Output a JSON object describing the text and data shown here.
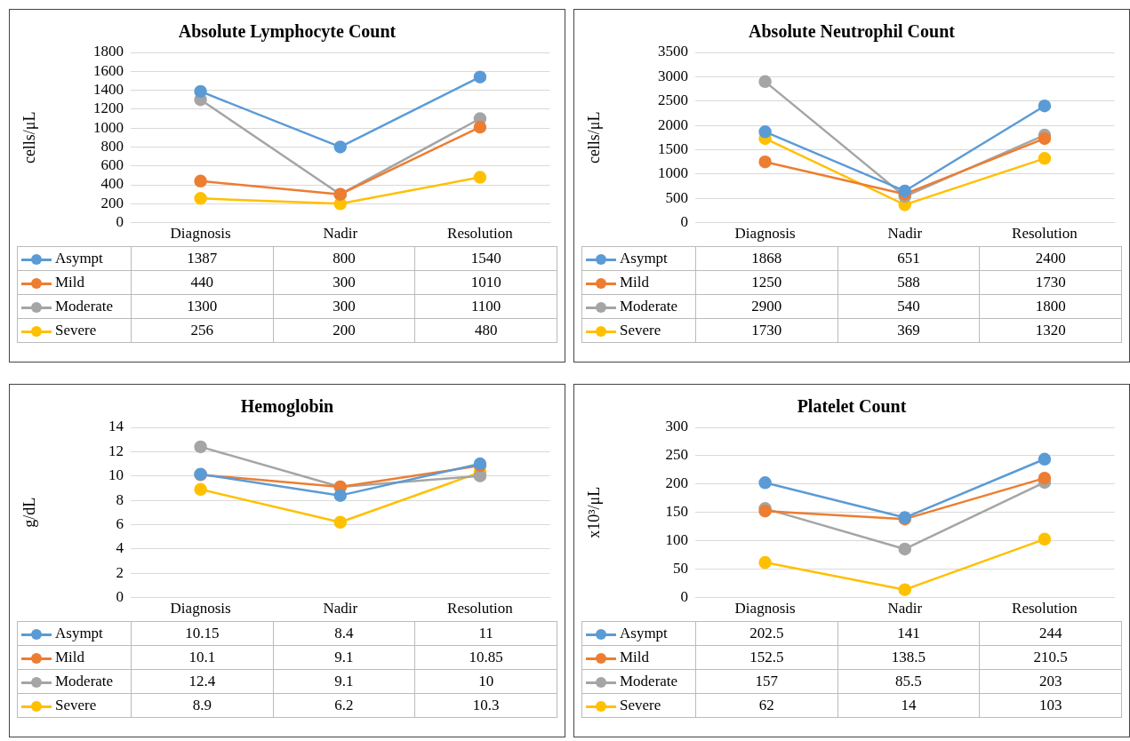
{
  "chart_data": [
    {
      "type": "line",
      "title": "Absolute Lymphocyte Count",
      "ylabel": "cells/μL",
      "categories": [
        "Diagnosis",
        "Nadir",
        "Resolution"
      ],
      "ylim": [
        0,
        1800
      ],
      "yticks": [
        0,
        200,
        400,
        600,
        800,
        1000,
        1200,
        1400,
        1600,
        1800
      ],
      "grid": "y",
      "marker": "circle",
      "legend": "bottom",
      "data_labels": true,
      "series": [
        {
          "name": "Asympt",
          "color": "#5b9bd5",
          "values": [
            1387,
            800,
            1540
          ]
        },
        {
          "name": "Mild",
          "color": "#ed7d31",
          "values": [
            440,
            300,
            1010
          ]
        },
        {
          "name": "Moderate",
          "color": "#a5a5a5",
          "values": [
            1300,
            300,
            1100
          ]
        },
        {
          "name": "Severe",
          "color": "#ffc000",
          "values": [
            256,
            200,
            480
          ]
        }
      ]
    },
    {
      "type": "line",
      "title": "Absolute Neutrophil Count",
      "ylabel": "cells/μL",
      "categories": [
        "Diagnosis",
        "Nadir",
        "Resolution"
      ],
      "ylim": [
        0,
        3500
      ],
      "yticks": [
        0,
        500,
        1000,
        1500,
        2000,
        2500,
        3000,
        3500
      ],
      "grid": "y",
      "marker": "circle",
      "legend": "bottom",
      "data_labels": true,
      "series": [
        {
          "name": "Asympt",
          "color": "#5b9bd5",
          "values": [
            1868,
            651,
            2400
          ]
        },
        {
          "name": "Mild",
          "color": "#ed7d31",
          "values": [
            1250,
            588,
            1730
          ]
        },
        {
          "name": "Moderate",
          "color": "#a5a5a5",
          "values": [
            2900,
            540,
            1800
          ]
        },
        {
          "name": "Severe",
          "color": "#ffc000",
          "values": [
            1730,
            369,
            1320
          ]
        }
      ]
    },
    {
      "type": "line",
      "title": "Hemoglobin",
      "ylabel": "g/dL",
      "categories": [
        "Diagnosis",
        "Nadir",
        "Resolution"
      ],
      "ylim": [
        0,
        14
      ],
      "yticks": [
        0,
        2,
        4,
        6,
        8,
        10,
        12,
        14
      ],
      "grid": "y",
      "marker": "circle",
      "legend": "bottom",
      "data_labels": true,
      "series": [
        {
          "name": "Asympt",
          "color": "#5b9bd5",
          "values": [
            10.15,
            8.4,
            11
          ]
        },
        {
          "name": "Mild",
          "color": "#ed7d31",
          "values": [
            10.1,
            9.1,
            10.85
          ]
        },
        {
          "name": "Moderate",
          "color": "#a5a5a5",
          "values": [
            12.4,
            9.1,
            10
          ]
        },
        {
          "name": "Severe",
          "color": "#ffc000",
          "values": [
            8.9,
            6.2,
            10.3
          ]
        }
      ]
    },
    {
      "type": "line",
      "title": "Platelet Count",
      "ylabel": "x10³/μL",
      "categories": [
        "Diagnosis",
        "Nadir",
        "Resolution"
      ],
      "ylim": [
        0,
        300
      ],
      "yticks": [
        0,
        50,
        100,
        150,
        200,
        250,
        300
      ],
      "grid": "y",
      "marker": "circle",
      "legend": "bottom",
      "data_labels": true,
      "series": [
        {
          "name": "Asympt",
          "color": "#5b9bd5",
          "values": [
            202.5,
            141,
            244
          ]
        },
        {
          "name": "Mild",
          "color": "#ed7d31",
          "values": [
            152.5,
            138.5,
            210.5
          ]
        },
        {
          "name": "Moderate",
          "color": "#a5a5a5",
          "values": [
            157,
            85.5,
            203
          ]
        },
        {
          "name": "Severe",
          "color": "#ffc000",
          "values": [
            62,
            14,
            103
          ]
        }
      ]
    }
  ]
}
